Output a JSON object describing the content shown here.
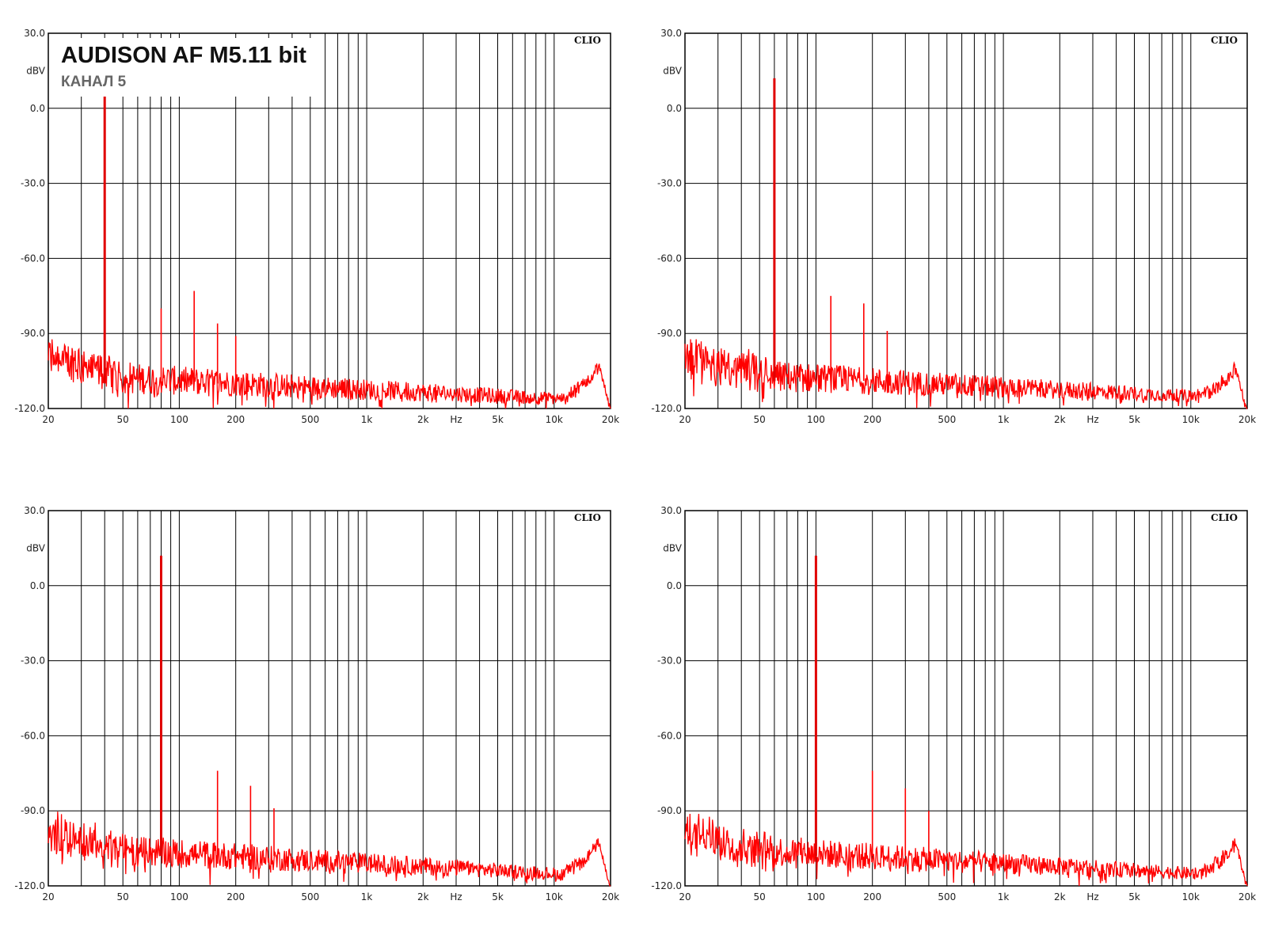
{
  "figure": {
    "title": "AUDISON AF M5.11 bit",
    "subtitle": "КАНАЛ 5"
  },
  "chart_data": [
    {
      "type": "line",
      "panel": "top-left",
      "brand": "CLIO",
      "ylabel": "dBV",
      "xunit": "Hz",
      "xscale": "log",
      "xlim": [
        20,
        20000
      ],
      "ylim": [
        -120,
        30
      ],
      "grid": true,
      "color": "#ff0000",
      "x_ticks": [
        "20",
        "50",
        "100",
        "200",
        "500",
        "1k",
        "2k",
        "Hz",
        "5k",
        "10k",
        "20k"
      ],
      "y_ticks": [
        "30.0",
        "dBV",
        "0.0",
        "-30.0",
        "-60.0",
        "-90.0",
        "-120.0"
      ],
      "noise_floor_db": -108,
      "noise_floor_end_db": -116,
      "hf_bump_db": -103,
      "series": [
        {
          "peaks": [
            [
              40,
              6
            ],
            [
              80,
              -80
            ],
            [
              120,
              -73
            ],
            [
              160,
              -86
            ],
            [
              200,
              -91
            ]
          ]
        }
      ]
    },
    {
      "type": "line",
      "panel": "top-right",
      "brand": "CLIO",
      "ylabel": "dBV",
      "xunit": "Hz",
      "xscale": "log",
      "xlim": [
        20,
        20000
      ],
      "ylim": [
        -120,
        30
      ],
      "grid": true,
      "color": "#ff0000",
      "x_ticks": [
        "20",
        "50",
        "100",
        "200",
        "500",
        "1k",
        "2k",
        "Hz",
        "5k",
        "10k",
        "20k"
      ],
      "y_ticks": [
        "30.0",
        "dBV",
        "0.0",
        "-30.0",
        "-60.0",
        "-90.0",
        "-120.0"
      ],
      "noise_floor_db": -107,
      "noise_floor_end_db": -115,
      "hf_bump_db": -104,
      "series": [
        {
          "peaks": [
            [
              60,
              12
            ],
            [
              120,
              -75
            ],
            [
              180,
              -78
            ],
            [
              240,
              -89
            ]
          ]
        }
      ]
    },
    {
      "type": "line",
      "panel": "bottom-left",
      "brand": "CLIO",
      "ylabel": "dBV",
      "xunit": "Hz",
      "xscale": "log",
      "xlim": [
        20,
        20000
      ],
      "ylim": [
        -120,
        30
      ],
      "grid": true,
      "color": "#ff0000",
      "x_ticks": [
        "20",
        "50",
        "100",
        "200",
        "500",
        "1k",
        "2k",
        "Hz",
        "5k",
        "10k",
        "20k"
      ],
      "y_ticks": [
        "30.0",
        "dBV",
        "0.0",
        "-30.0",
        "-60.0",
        "-90.0",
        "-120.0"
      ],
      "noise_floor_db": -106,
      "noise_floor_end_db": -115,
      "hf_bump_db": -103,
      "series": [
        {
          "peaks": [
            [
              80,
              12
            ],
            [
              160,
              -74
            ],
            [
              240,
              -80
            ],
            [
              320,
              -89
            ]
          ]
        }
      ]
    },
    {
      "type": "line",
      "panel": "bottom-right",
      "brand": "CLIO",
      "ylabel": "dBV",
      "xunit": "Hz",
      "xscale": "log",
      "xlim": [
        20,
        20000
      ],
      "ylim": [
        -120,
        30
      ],
      "grid": true,
      "color": "#ff0000",
      "x_ticks": [
        "20",
        "50",
        "100",
        "200",
        "500",
        "1k",
        "2k",
        "Hz",
        "5k",
        "10k",
        "20k"
      ],
      "y_ticks": [
        "30.0",
        "dBV",
        "0.0",
        "-30.0",
        "-60.0",
        "-90.0",
        "-120.0"
      ],
      "noise_floor_db": -106,
      "noise_floor_end_db": -115,
      "hf_bump_db": -103,
      "series": [
        {
          "peaks": [
            [
              100,
              12
            ],
            [
              200,
              -74
            ],
            [
              300,
              -81
            ],
            [
              400,
              -90
            ]
          ]
        }
      ]
    }
  ]
}
